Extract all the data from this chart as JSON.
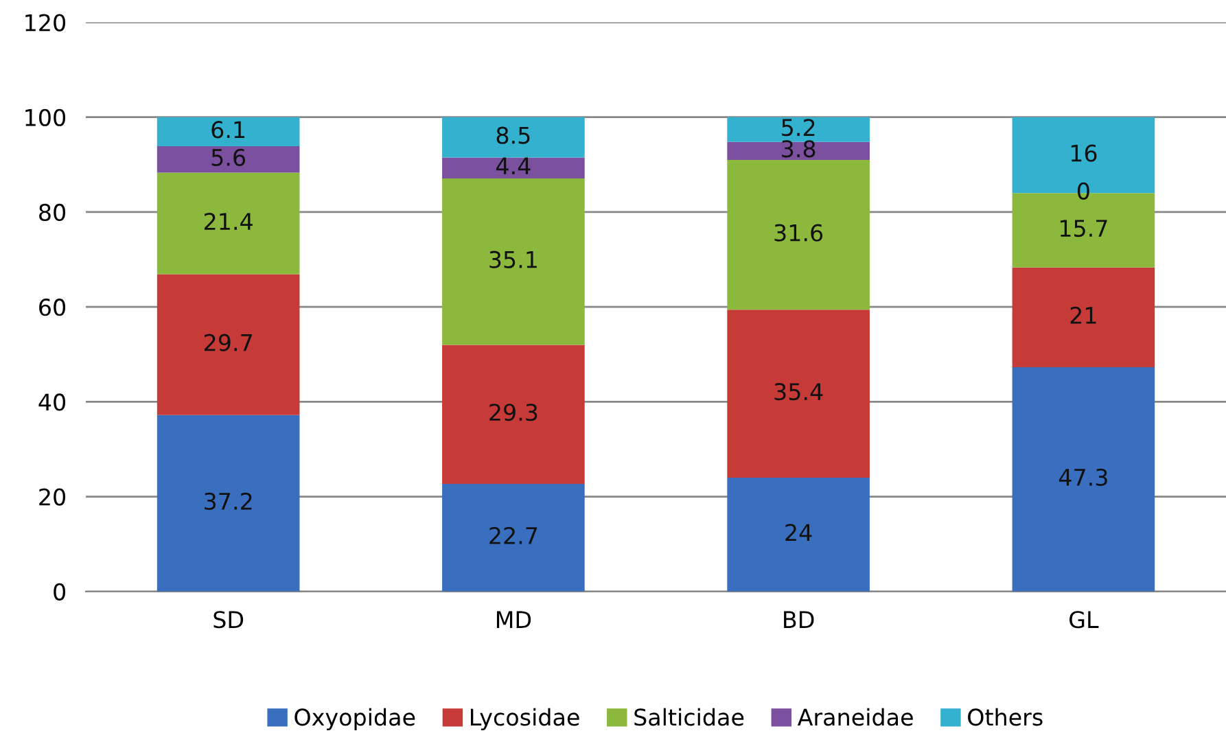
{
  "chart_data": {
    "type": "bar",
    "stacked": true,
    "categories": [
      "SD",
      "MD",
      "BD",
      "GL"
    ],
    "series": [
      {
        "name": "Oxyopidae",
        "color": "#3a6fc0",
        "values": [
          37.2,
          22.7,
          24,
          47.3
        ]
      },
      {
        "name": "Lycosidae",
        "color": "#c63b38",
        "values": [
          29.7,
          29.3,
          35.4,
          21
        ]
      },
      {
        "name": "Salticidae",
        "color": "#8cb83e",
        "values": [
          21.4,
          35.1,
          31.6,
          15.7
        ]
      },
      {
        "name": "Araneidae",
        "color": "#7b509f",
        "values": [
          5.6,
          4.4,
          3.8,
          0
        ]
      },
      {
        "name": "Others",
        "color": "#33b1cf",
        "values": [
          6.1,
          8.5,
          5.2,
          16
        ]
      }
    ],
    "ylim": [
      0,
      120
    ],
    "yticks": [
      0,
      20,
      40,
      60,
      80,
      100,
      120
    ],
    "grid": "y",
    "legend": "bottom",
    "data_labels": true
  }
}
